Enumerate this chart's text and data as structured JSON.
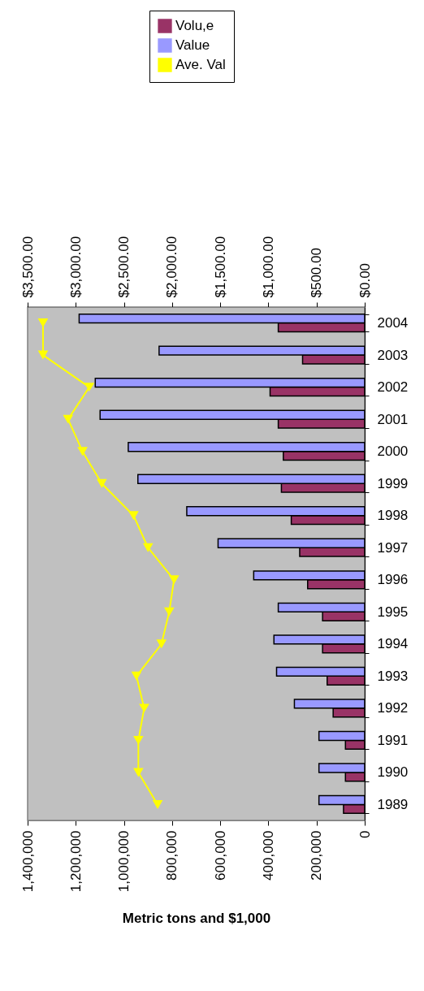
{
  "chart_data": {
    "type": "bar",
    "orientation": "horizontal",
    "xlabel": "Metric tons and $1,000",
    "categories": [
      "2004",
      "2003",
      "2002",
      "2001",
      "2000",
      "1999",
      "1998",
      "1997",
      "1996",
      "1995",
      "1994",
      "1993",
      "1992",
      "1991",
      "1990",
      "1989"
    ],
    "series": [
      {
        "name": "Volu,e",
        "color": "#993366",
        "values": [
          359000,
          258000,
          393000,
          359000,
          338000,
          346000,
          305000,
          270000,
          237000,
          175000,
          175000,
          156000,
          131000,
          80000,
          80000,
          88000
        ]
      },
      {
        "name": "Value",
        "color": "#9999ff",
        "values": [
          1186000,
          854000,
          1119000,
          1099000,
          982000,
          942000,
          739000,
          609000,
          461000,
          359000,
          377000,
          366000,
          292000,
          190000,
          190000,
          190000
        ]
      },
      {
        "name": "Ave. Val",
        "type": "line",
        "axis": "x2",
        "color": "#ffff00",
        "values": [
          3340,
          3340,
          2860,
          3080,
          2930,
          2730,
          2400,
          2250,
          1980,
          2030,
          2110,
          2370,
          2290,
          2350,
          2350,
          2150
        ]
      }
    ],
    "xlim": [
      1400000,
      0
    ],
    "xticks": [
      {
        "value": 0,
        "label": "0"
      },
      {
        "value": 200000,
        "label": "200,000"
      },
      {
        "value": 400000,
        "label": "400,000"
      },
      {
        "value": 600000,
        "label": "600,000"
      },
      {
        "value": 800000,
        "label": "800,000"
      },
      {
        "value": 1000000,
        "label": "1,000,000"
      },
      {
        "value": 1200000,
        "label": "1,200,000"
      },
      {
        "value": 1400000,
        "label": "1,400,000"
      }
    ],
    "x2lim": [
      3500,
      0
    ],
    "x2ticks": [
      {
        "value": 0,
        "label": "$0.00"
      },
      {
        "value": 500,
        "label": "$500.00"
      },
      {
        "value": 1000,
        "label": "$1,000.00"
      },
      {
        "value": 1500,
        "label": "$1,500.00"
      },
      {
        "value": 2000,
        "label": "$2,000.00"
      },
      {
        "value": 2500,
        "label": "$2,500.00"
      },
      {
        "value": 3000,
        "label": "$3,000.00"
      },
      {
        "value": 3500,
        "label": "$3,500.00"
      }
    ],
    "marker": "triangle",
    "grid": false,
    "legend": "top right"
  }
}
